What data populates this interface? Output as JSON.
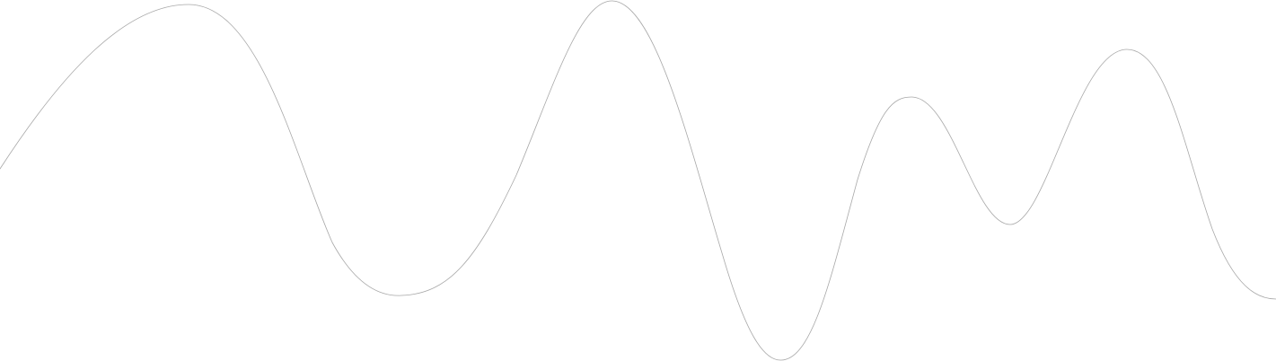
{
  "colors": {
    "background": "#ffffff",
    "line": "#a8a8a8"
  },
  "shape": {
    "kind": "smooth-wave-line"
  }
}
